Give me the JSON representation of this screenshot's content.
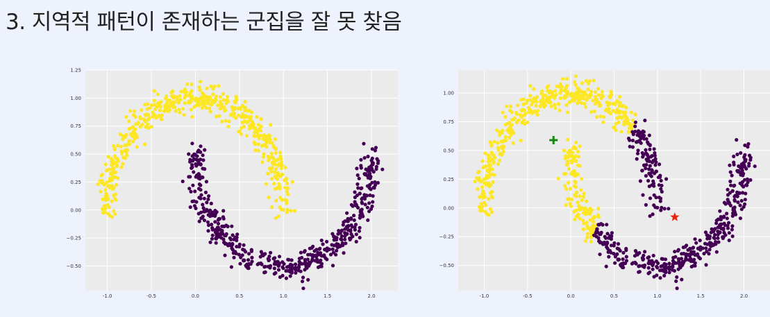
{
  "slide": {
    "title": "3. 지역적 패턴이 존재하는 군집을 잘 못 찾음"
  },
  "colors": {
    "background": "#eef2fd",
    "plot_background": "#ebebeb",
    "grid": "#ffffff",
    "cluster_yellow": "#fde725",
    "cluster_purple": "#440154",
    "marker_plus": "#118811",
    "marker_star": "#ee2211"
  },
  "chart_data": [
    {
      "type": "scatter",
      "description_role": "true two-moons clustering",
      "title": "",
      "xlabel": "",
      "ylabel": "",
      "xlim": [
        -1.25,
        2.3
      ],
      "ylim": [
        -0.72,
        1.25
      ],
      "xticks": [
        "-1.0",
        "-0.5",
        "0.0",
        "0.5",
        "1.0",
        "1.5",
        "2.0"
      ],
      "yticks": [
        "1.25",
        "1.00",
        "0.75",
        "0.50",
        "0.25",
        "0.00",
        "−0.25",
        "−0.50"
      ],
      "grid": true,
      "series": [
        {
          "color": "#fde725",
          "shape": "upper-moon",
          "center": [
            0.0,
            0.0
          ],
          "radius": 1.0,
          "noise": 0.06,
          "points": 520
        },
        {
          "color": "#440154",
          "shape": "lower-moon",
          "center": [
            1.0,
            0.5
          ],
          "radius": 1.0,
          "noise": 0.06,
          "points": 520
        }
      ]
    },
    {
      "type": "scatter",
      "description_role": "k-means clustering with centroids",
      "title": "",
      "xlabel": "",
      "ylabel": "",
      "xlim": [
        -1.3,
        2.3
      ],
      "ylim": [
        -0.72,
        1.2
      ],
      "xticks": [
        "-1.0",
        "-0.5",
        "0.0",
        "0.5",
        "1.0",
        "1.5",
        "2.0"
      ],
      "yticks": [
        "1.00",
        "0.75",
        "0.50",
        "0.25",
        "0.00",
        "−0.25",
        "−0.50"
      ],
      "grid": true,
      "series": [
        {
          "color": "#fde725",
          "rule": "closer to plus centroid",
          "points": 1040
        },
        {
          "color": "#440154",
          "rule": "closer to star centroid",
          "points": 1040
        }
      ],
      "centroids": [
        {
          "marker": "plus",
          "color": "#118811",
          "x": -0.2,
          "y": 0.59
        },
        {
          "marker": "star",
          "color": "#ee2211",
          "x": 1.2,
          "y": -0.08
        }
      ]
    }
  ]
}
